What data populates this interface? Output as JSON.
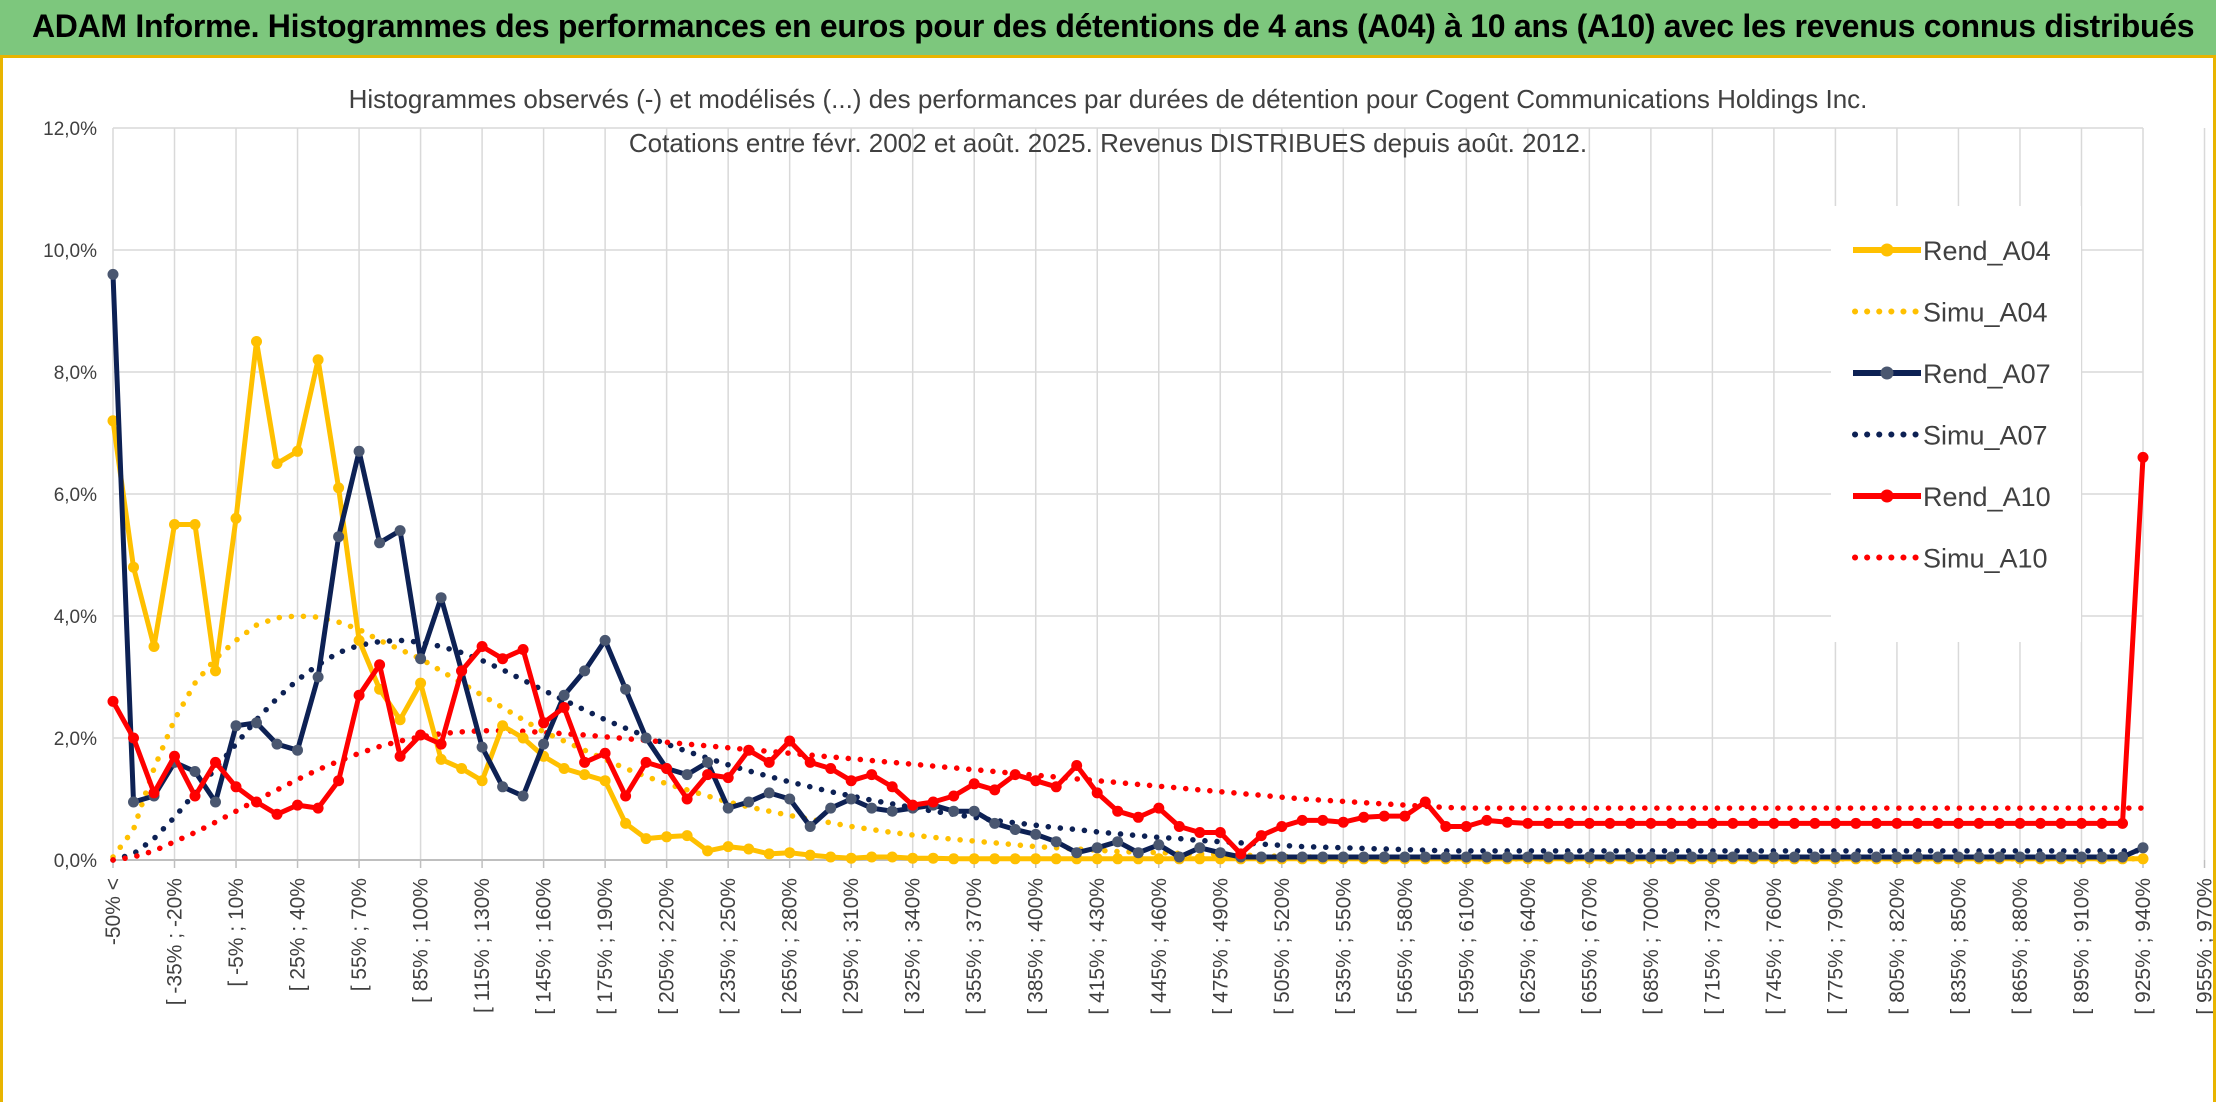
{
  "page": {
    "banner": "ADAM Informe. Histogrammes des performances en euros pour des détentions de 4 ans (A04) à 10 ans (A10) avec les revenus connus distribués"
  },
  "chart_data": {
    "type": "line",
    "title": "Histogrammes observés (-) et modélisés (...) des performances par durées de détention pour Cogent Communications Holdings Inc.",
    "subtitle": "Cotations entre févr. 2002 et août. 2025. Revenus DISTRIBUES depuis août. 2012.",
    "xlabel": "",
    "ylabel": "",
    "ylim": [
      0,
      12
    ],
    "y_ticks": [
      "0,0%",
      "2,0%",
      "4,0%",
      "6,0%",
      "8,0%",
      "10,0%",
      "12,0%"
    ],
    "grid": true,
    "legend_position": "right",
    "x_labels_shown": [
      "-50% <",
      "[ -35% ; -20%",
      "[ -5% ; 10%",
      "[ 25% ; 40%",
      "[ 55% ; 70%",
      "[ 85% ; 100%",
      "[ 115% ; 130%",
      "[ 145% ; 160%",
      "[ 175% ; 190%",
      "[ 205% ; 220%",
      "[ 235% ; 250%",
      "[ 265% ; 280%",
      "[ 295% ; 310%",
      "[ 325% ; 340%",
      "[ 355% ; 370%",
      "[ 385% ; 400%",
      "[ 415% ; 430%",
      "[ 445% ; 460%",
      "[ 475% ; 490%",
      "[ 505% ; 520%",
      "[ 535% ; 550%",
      "[ 565% ; 580%",
      "[ 595% ; 610%",
      "[ 625% ; 640%",
      "[ 655% ; 670%",
      "[ 685% ; 700%",
      "[ 715% ; 730%",
      "[ 745% ; 760%",
      "[ 775% ; 790%",
      "[ 805% ; 820%",
      "[ 835% ; 850%",
      "[ 865% ; 880%",
      "[ 895% ; 910%",
      "[ 925% ; 940%",
      "[ 955% ; 970%"
    ],
    "series": [
      {
        "name": "Rend_A04",
        "color": "#ffc000",
        "style": "solid",
        "values": [
          7.2,
          4.8,
          3.5,
          5.5,
          5.5,
          3.1,
          5.6,
          8.5,
          6.5,
          6.7,
          8.2,
          6.1,
          3.6,
          2.8,
          2.3,
          2.9,
          1.65,
          1.5,
          1.3,
          2.2,
          2.0,
          1.7,
          1.5,
          1.4,
          1.3,
          0.6,
          0.35,
          0.38,
          0.4,
          0.15,
          0.22,
          0.18,
          0.1,
          0.12,
          0.08,
          0.05,
          0.03,
          0.05,
          0.05,
          0.03,
          0.03,
          0.02,
          0.02,
          0.02,
          0.02,
          0.02,
          0.02,
          0.02,
          0.02,
          0.02,
          0.02,
          0.02,
          0.02,
          0.02,
          0.02,
          0.02,
          0.02,
          0.02,
          0.02,
          0.02,
          0.02,
          0.02,
          0.02,
          0.02,
          0.02,
          0.02,
          0.02,
          0.02,
          0.02,
          0.02,
          0.02,
          0.02,
          0.02,
          0.02,
          0.02,
          0.02,
          0.02,
          0.02,
          0.02,
          0.02,
          0.02,
          0.02,
          0.02,
          0.02,
          0.02,
          0.02,
          0.02,
          0.02,
          0.02,
          0.02,
          0.02,
          0.02,
          0.02,
          0.02,
          0.02,
          0.02,
          0.02,
          0.02,
          0.02,
          0.02
        ]
      },
      {
        "name": "Simu_A04",
        "color": "#ffc000",
        "style": "dotted",
        "values": [
          0.05,
          0.5,
          1.5,
          2.3,
          2.9,
          3.3,
          3.6,
          3.85,
          3.97,
          4.0,
          3.98,
          3.9,
          3.78,
          3.6,
          3.45,
          3.3,
          3.1,
          2.9,
          2.7,
          2.5,
          2.3,
          2.1,
          1.95,
          1.8,
          1.65,
          1.5,
          1.37,
          1.25,
          1.15,
          1.05,
          0.95,
          0.87,
          0.8,
          0.73,
          0.67,
          0.61,
          0.55,
          0.5,
          0.45,
          0.41,
          0.37,
          0.34,
          0.31,
          0.28,
          0.25,
          0.22,
          0.2,
          0.18,
          0.16,
          0.14,
          0.13,
          0.12,
          0.11,
          0.1,
          0.09,
          0.08,
          0.07,
          0.06,
          0.05,
          0.05,
          0.04,
          0.04,
          0.03,
          0.03,
          0.03,
          0.02,
          0.02,
          0.02,
          0.02,
          0.02,
          0.02,
          0.02,
          0.02,
          0.02,
          0.02,
          0.02,
          0.02,
          0.02,
          0.02,
          0.02,
          0.02,
          0.02,
          0.02,
          0.02,
          0.02,
          0.02,
          0.02,
          0.02,
          0.02,
          0.02,
          0.02,
          0.02,
          0.02,
          0.02,
          0.02,
          0.02,
          0.02,
          0.02,
          0.02,
          0.02
        ]
      },
      {
        "name": "Rend_A07",
        "color": "#0d2154",
        "style": "solid",
        "values": [
          9.6,
          0.95,
          1.05,
          1.6,
          1.45,
          0.95,
          2.2,
          2.25,
          1.9,
          1.8,
          3.0,
          5.3,
          6.7,
          5.2,
          5.4,
          3.3,
          4.3,
          3.1,
          1.85,
          1.2,
          1.05,
          1.9,
          2.7,
          3.1,
          3.6,
          2.8,
          2.0,
          1.5,
          1.4,
          1.6,
          0.85,
          0.95,
          1.1,
          1.0,
          0.55,
          0.85,
          1.0,
          0.85,
          0.8,
          0.85,
          0.9,
          0.8,
          0.8,
          0.6,
          0.5,
          0.42,
          0.3,
          0.12,
          0.2,
          0.3,
          0.12,
          0.25,
          0.05,
          0.2,
          0.12,
          0.05,
          0.05,
          0.05,
          0.05,
          0.05,
          0.05,
          0.05,
          0.05,
          0.05,
          0.05,
          0.05,
          0.05,
          0.05,
          0.05,
          0.05,
          0.05,
          0.05,
          0.05,
          0.05,
          0.05,
          0.05,
          0.05,
          0.05,
          0.05,
          0.05,
          0.05,
          0.05,
          0.05,
          0.05,
          0.05,
          0.05,
          0.05,
          0.05,
          0.05,
          0.05,
          0.05,
          0.05,
          0.05,
          0.05,
          0.05,
          0.05,
          0.05,
          0.05,
          0.05,
          0.2
        ]
      },
      {
        "name": "Simu_A07",
        "color": "#0d2154",
        "style": "dotted",
        "values": [
          0.0,
          0.1,
          0.35,
          0.7,
          1.1,
          1.5,
          1.9,
          2.3,
          2.65,
          2.95,
          3.2,
          3.4,
          3.52,
          3.58,
          3.6,
          3.57,
          3.5,
          3.4,
          3.27,
          3.12,
          2.95,
          2.78,
          2.62,
          2.46,
          2.3,
          2.16,
          2.03,
          1.9,
          1.78,
          1.67,
          1.56,
          1.46,
          1.37,
          1.28,
          1.2,
          1.12,
          1.05,
          0.98,
          0.92,
          0.86,
          0.8,
          0.75,
          0.7,
          0.65,
          0.61,
          0.57,
          0.53,
          0.5,
          0.46,
          0.43,
          0.4,
          0.37,
          0.35,
          0.32,
          0.3,
          0.28,
          0.26,
          0.24,
          0.22,
          0.21,
          0.2,
          0.19,
          0.18,
          0.17,
          0.16,
          0.15,
          0.15,
          0.15,
          0.15,
          0.15,
          0.15,
          0.15,
          0.15,
          0.15,
          0.15,
          0.15,
          0.15,
          0.15,
          0.15,
          0.15,
          0.15,
          0.15,
          0.15,
          0.15,
          0.15,
          0.15,
          0.15,
          0.15,
          0.15,
          0.15,
          0.15,
          0.15,
          0.15,
          0.15,
          0.15,
          0.15,
          0.15,
          0.15,
          0.15,
          0.15
        ]
      },
      {
        "name": "Rend_A10",
        "color": "#ff0000",
        "style": "solid",
        "values": [
          2.6,
          2.0,
          1.1,
          1.7,
          1.05,
          1.6,
          1.2,
          0.95,
          0.75,
          0.9,
          0.85,
          1.3,
          2.7,
          3.2,
          1.7,
          2.05,
          1.9,
          3.1,
          3.5,
          3.3,
          3.45,
          2.25,
          2.5,
          1.6,
          1.75,
          1.05,
          1.6,
          1.5,
          1.0,
          1.4,
          1.35,
          1.8,
          1.6,
          1.95,
          1.6,
          1.5,
          1.3,
          1.4,
          1.2,
          0.9,
          0.95,
          1.05,
          1.25,
          1.15,
          1.4,
          1.3,
          1.2,
          1.55,
          1.1,
          0.8,
          0.7,
          0.85,
          0.55,
          0.45,
          0.45,
          0.1,
          0.4,
          0.55,
          0.65,
          0.65,
          0.62,
          0.7,
          0.72,
          0.72,
          0.95,
          0.55,
          0.55,
          0.65,
          0.62,
          0.6,
          0.6,
          0.6,
          0.6,
          0.6,
          0.6,
          0.6,
          0.6,
          0.6,
          0.6,
          0.6,
          0.6,
          0.6,
          0.6,
          0.6,
          0.6,
          0.6,
          0.6,
          0.6,
          0.6,
          0.6,
          0.6,
          0.6,
          0.6,
          0.6,
          0.6,
          0.6,
          0.6,
          0.6,
          0.6,
          6.6
        ]
      },
      {
        "name": "Simu_A10",
        "color": "#ff0000",
        "style": "dotted",
        "values": [
          0.0,
          0.05,
          0.15,
          0.3,
          0.45,
          0.62,
          0.8,
          0.98,
          1.15,
          1.32,
          1.48,
          1.62,
          1.75,
          1.86,
          1.95,
          2.02,
          2.07,
          2.1,
          2.12,
          2.12,
          2.11,
          2.09,
          2.07,
          2.05,
          2.02,
          1.99,
          1.96,
          1.93,
          1.9,
          1.87,
          1.84,
          1.81,
          1.78,
          1.75,
          1.72,
          1.69,
          1.66,
          1.63,
          1.6,
          1.57,
          1.54,
          1.51,
          1.48,
          1.45,
          1.42,
          1.39,
          1.36,
          1.33,
          1.3,
          1.27,
          1.24,
          1.21,
          1.18,
          1.15,
          1.12,
          1.09,
          1.06,
          1.03,
          1.0,
          0.98,
          0.96,
          0.94,
          0.92,
          0.9,
          0.88,
          0.86,
          0.85,
          0.85,
          0.85,
          0.85,
          0.85,
          0.85,
          0.85,
          0.85,
          0.85,
          0.85,
          0.85,
          0.85,
          0.85,
          0.85,
          0.85,
          0.85,
          0.85,
          0.85,
          0.85,
          0.85,
          0.85,
          0.85,
          0.85,
          0.85,
          0.85,
          0.85,
          0.85,
          0.85,
          0.85,
          0.85,
          0.85,
          0.85,
          0.85,
          0.85
        ]
      }
    ]
  }
}
